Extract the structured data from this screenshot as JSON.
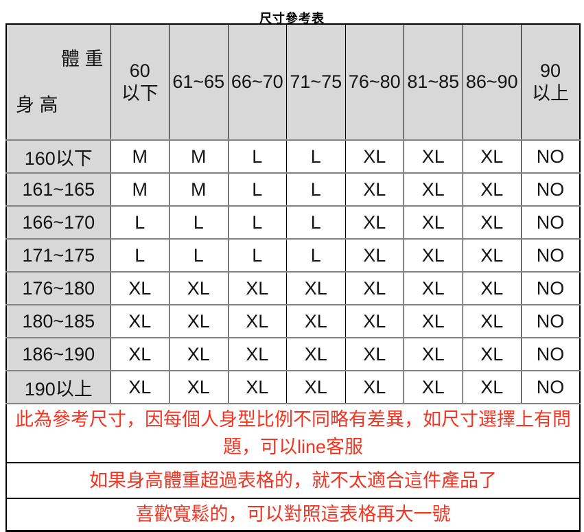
{
  "title": "尺寸參考表",
  "colors": {
    "note_red": "#f13522",
    "header_fill": "#d8d8d8",
    "grid_gray": "#828282"
  },
  "table": {
    "corner": {
      "weight_label": "體 重",
      "height_label": "身 高"
    },
    "weight_headers": [
      "60\n以下",
      "61~65",
      "66~70",
      "71~75",
      "76~80",
      "81~85",
      "86~90",
      "90\n以上"
    ],
    "rows": [
      {
        "label": "160以下",
        "values": [
          "M",
          "M",
          "L",
          "L",
          "XL",
          "XL",
          "XL",
          "NO"
        ]
      },
      {
        "label": "161~165",
        "values": [
          "M",
          "M",
          "L",
          "L",
          "XL",
          "XL",
          "XL",
          "NO"
        ]
      },
      {
        "label": "166~170",
        "values": [
          "L",
          "L",
          "L",
          "L",
          "XL",
          "XL",
          "XL",
          "NO"
        ]
      },
      {
        "label": "171~175",
        "values": [
          "L",
          "L",
          "L",
          "L",
          "XL",
          "XL",
          "XL",
          "NO"
        ]
      },
      {
        "label": "176~180",
        "values": [
          "XL",
          "XL",
          "XL",
          "XL",
          "XL",
          "XL",
          "XL",
          "NO"
        ]
      },
      {
        "label": "180~185",
        "values": [
          "XL",
          "XL",
          "XL",
          "XL",
          "XL",
          "XL",
          "XL",
          "NO"
        ]
      },
      {
        "label": "186~190",
        "values": [
          "XL",
          "XL",
          "XL",
          "XL",
          "XL",
          "XL",
          "XL",
          "NO"
        ]
      },
      {
        "label": "190以上",
        "values": [
          "XL",
          "XL",
          "XL",
          "XL",
          "XL",
          "XL",
          "XL",
          "NO"
        ]
      }
    ],
    "notes": [
      "此為參考尺寸，因每個人身型比例不同略有差異，如尺寸選擇上有問題，可以line客服",
      "如果身高體重超過表格的，就不太適合這件產品了",
      "喜歡寬鬆的，可以對照這表格再大一號"
    ]
  }
}
